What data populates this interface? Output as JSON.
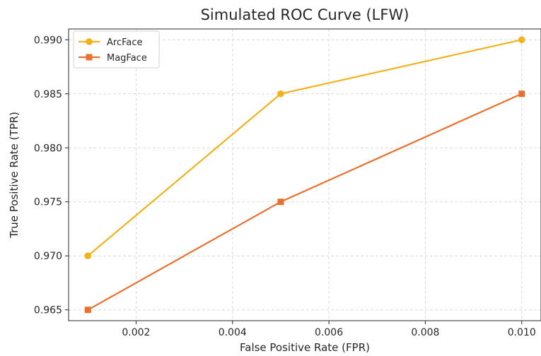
{
  "chart_data": {
    "type": "line",
    "title": "Simulated ROC Curve (LFW)",
    "xlabel": "False Positive Rate (FPR)",
    "ylabel": "True Positive Rate (TPR)",
    "xlim": [
      0.0006,
      0.0104
    ],
    "ylim": [
      0.964,
      0.991
    ],
    "xticks": [
      0.002,
      0.004,
      0.006,
      0.008,
      0.01
    ],
    "xtick_labels": [
      "0.002",
      "0.004",
      "0.006",
      "0.008",
      "0.010"
    ],
    "yticks": [
      0.965,
      0.97,
      0.975,
      0.98,
      0.985,
      0.99
    ],
    "ytick_labels": [
      "0.965",
      "0.970",
      "0.975",
      "0.980",
      "0.985",
      "0.990"
    ],
    "grid": true,
    "legend_position": "top-left",
    "series": [
      {
        "name": "ArcFace",
        "marker": "circle",
        "color": "#f2b21c",
        "x": [
          0.001,
          0.005,
          0.01
        ],
        "y": [
          0.97,
          0.985,
          0.99
        ]
      },
      {
        "name": "MagFace",
        "marker": "square",
        "color": "#e8712f",
        "x": [
          0.001,
          0.005,
          0.01
        ],
        "y": [
          0.965,
          0.975,
          0.985
        ]
      }
    ]
  }
}
